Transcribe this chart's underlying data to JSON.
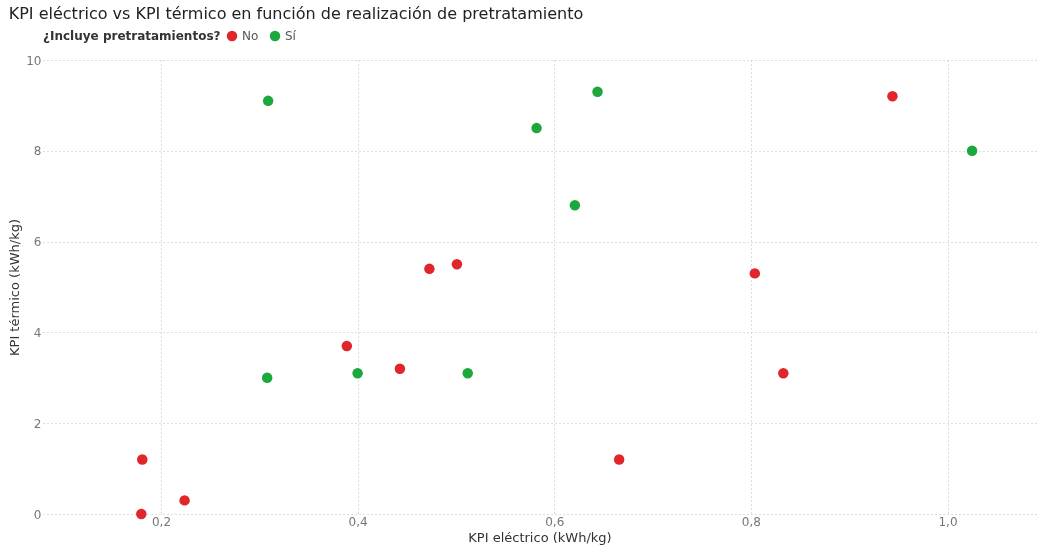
{
  "chart_data": {
    "type": "scatter",
    "title": "KPI eléctrico vs KPI térmico en función de realización de pretratamiento",
    "xlabel": "KPI eléctrico (kWh/kg)",
    "ylabel": "KPI térmico (kWh/kg)",
    "legend_title": "¿Incluye pretratamientos?",
    "legend": "top left",
    "grid": true,
    "marker": "circle",
    "xlim": [
      0.08,
      1.09
    ],
    "xticks": [
      {
        "value": 0.2,
        "label": "0,2"
      },
      {
        "value": 0.4,
        "label": "0,4"
      },
      {
        "value": 0.6,
        "label": "0,6"
      },
      {
        "value": 0.8,
        "label": "0,8"
      },
      {
        "value": 1.0,
        "label": "1,0"
      }
    ],
    "ylim": [
      0,
      10
    ],
    "yticks": [
      0,
      2,
      4,
      6,
      8,
      10
    ],
    "series": [
      {
        "name": "No",
        "color": "#e0262a",
        "x": [
          0.181,
          0.18,
          0.224,
          0.389,
          0.443,
          0.473,
          0.501,
          0.666,
          0.804,
          0.833,
          0.944
        ],
        "values": [
          1.2,
          0,
          0.3,
          3.7,
          3.2,
          5.4,
          5.5,
          1.2,
          5.3,
          3.1,
          9.2
        ]
      },
      {
        "name": "Sí",
        "color": "#1ca83c",
        "x": [
          0.309,
          0.308,
          0.4,
          0.512,
          0.582,
          0.621,
          0.644,
          1.025
        ],
        "values": [
          9.1,
          3.0,
          3.1,
          3.1,
          8.5,
          6.8,
          9.3,
          8.0
        ]
      }
    ]
  }
}
